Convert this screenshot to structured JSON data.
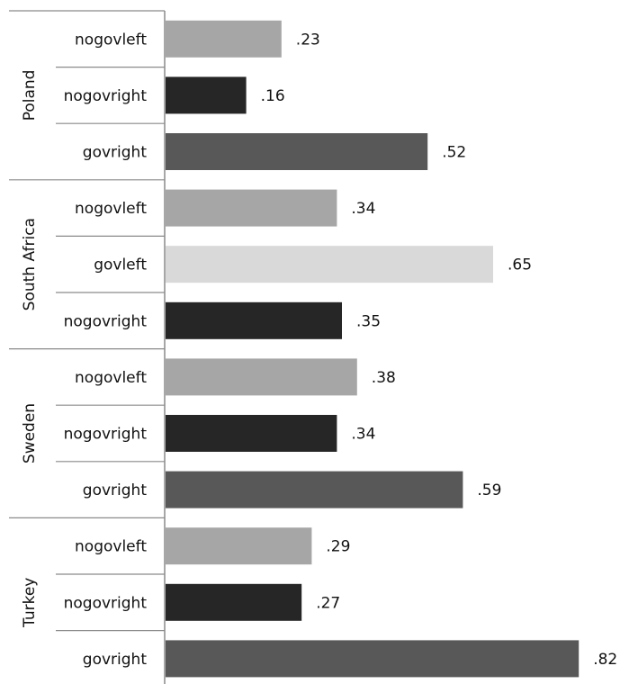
{
  "chart_data": {
    "type": "bar",
    "orientation": "horizontal",
    "grouped_by": "country",
    "groups": [
      {
        "name": "Poland",
        "bars": [
          {
            "category": "nogovleft",
            "value": 0.23,
            "label": ".23"
          },
          {
            "category": "nogovright",
            "value": 0.16,
            "label": ".16"
          },
          {
            "category": "govright",
            "value": 0.52,
            "label": ".52"
          }
        ]
      },
      {
        "name": "South Africa",
        "bars": [
          {
            "category": "nogovleft",
            "value": 0.34,
            "label": ".34"
          },
          {
            "category": "govleft",
            "value": 0.65,
            "label": ".65"
          },
          {
            "category": "nogovright",
            "value": 0.35,
            "label": ".35"
          }
        ]
      },
      {
        "name": "Sweden",
        "bars": [
          {
            "category": "nogovleft",
            "value": 0.38,
            "label": ".38"
          },
          {
            "category": "nogovright",
            "value": 0.34,
            "label": ".34"
          },
          {
            "category": "govright",
            "value": 0.59,
            "label": ".59"
          }
        ]
      },
      {
        "name": "Turkey",
        "bars": [
          {
            "category": "nogovleft",
            "value": 0.29,
            "label": ".29"
          },
          {
            "category": "nogovright",
            "value": 0.27,
            "label": ".27"
          },
          {
            "category": "govright",
            "value": 0.82,
            "label": ".82"
          }
        ]
      }
    ],
    "colors": {
      "nogovleft": "#a6a6a6",
      "nogovright": "#262626",
      "govright": "#585858",
      "govleft": "#d9d9d9"
    },
    "xlim": [
      0,
      0.82
    ],
    "grid": false,
    "legend": "none"
  }
}
